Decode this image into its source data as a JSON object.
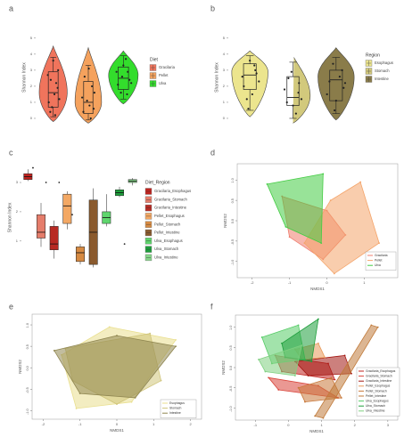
{
  "chart_data": [
    {
      "panel": "a",
      "type": "violin",
      "ylabel": "Shannon Index",
      "yticks": [
        0,
        1,
        2,
        3,
        4,
        5
      ],
      "ylim": [
        -0.5,
        5.6
      ],
      "legend": {
        "title": "Diet",
        "entries": [
          "Gracilaria",
          "Pellet",
          "Ulva"
        ]
      },
      "groups": [
        {
          "name": "Gracilaria",
          "color": "#f0745c",
          "min": -0.2,
          "max": 4.5,
          "mode": 1.6,
          "width": 0.95,
          "q1": 0.7,
          "median": 1.6,
          "q3": 2.9,
          "wlo": 0.1,
          "whi": 3.8,
          "points": [
            [
              -0.18,
              1.0
            ],
            [
              0.12,
              2.2
            ],
            [
              0.2,
              3.0
            ],
            [
              -0.12,
              0.4
            ],
            [
              0.05,
              1.5
            ],
            [
              -0.22,
              2.7
            ],
            [
              0.25,
              1.2
            ],
            [
              0.0,
              3.6
            ],
            [
              -0.05,
              0.7
            ],
            [
              0.18,
              1.9
            ],
            [
              -0.1,
              2.4
            ],
            [
              0.08,
              0.2
            ]
          ]
        },
        {
          "name": "Pellet",
          "color": "#f5a25d",
          "min": -0.3,
          "max": 4.4,
          "mode": 1.0,
          "width": 0.9,
          "q1": 0.3,
          "median": 1.0,
          "q3": 2.3,
          "wlo": -0.1,
          "whi": 3.3,
          "points": [
            [
              -0.2,
              0.4
            ],
            [
              0.15,
              2.0
            ],
            [
              -0.05,
              1.1
            ],
            [
              0.22,
              0.6
            ],
            [
              0.02,
              3.1
            ],
            [
              -0.15,
              2.6
            ],
            [
              0.1,
              0.0
            ],
            [
              0.25,
              1.6
            ],
            [
              -0.25,
              1.3
            ],
            [
              0.05,
              0.8
            ]
          ]
        },
        {
          "name": "Ulva",
          "color": "#33dd2c",
          "min": 0.9,
          "max": 4.2,
          "mode": 2.7,
          "width": 1.0,
          "q1": 1.8,
          "median": 2.5,
          "q3": 3.2,
          "wlo": 1.2,
          "whi": 3.9,
          "points": [
            [
              -0.22,
              2.1
            ],
            [
              0.18,
              2.9
            ],
            [
              0.0,
              3.3
            ],
            [
              -0.1,
              1.6
            ],
            [
              0.25,
              2.4
            ],
            [
              0.1,
              3.7
            ],
            [
              -0.28,
              2.9
            ],
            [
              0.32,
              2.2
            ],
            [
              -0.05,
              2.6
            ],
            [
              0.15,
              1.5
            ]
          ]
        }
      ]
    },
    {
      "panel": "b",
      "type": "violin",
      "ylabel": "Shannon Index",
      "yticks": [
        0,
        1,
        2,
        3,
        4,
        5
      ],
      "ylim": [
        -0.5,
        5.6
      ],
      "legend": {
        "title": "Region",
        "entries": [
          "Esophagus",
          "Stomach",
          "Intestine"
        ]
      },
      "groups": [
        {
          "name": "Esophagus",
          "color": "#ece58e",
          "min": 0.1,
          "max": 4.2,
          "mode": 2.9,
          "width": 1.0,
          "q1": 1.8,
          "median": 2.7,
          "q3": 3.4,
          "wlo": 0.5,
          "whi": 3.9,
          "points": [
            [
              -0.2,
              2.0
            ],
            [
              0.15,
              3.3
            ],
            [
              -0.1,
              1.2
            ],
            [
              0.22,
              2.8
            ],
            [
              0.0,
              3.6
            ],
            [
              -0.25,
              2.6
            ],
            [
              0.08,
              1.5
            ],
            [
              0.3,
              2.3
            ],
            [
              -0.05,
              0.6
            ],
            [
              0.18,
              3.0
            ]
          ]
        },
        {
          "name": "Stomach",
          "color": "#d2c97c",
          "min": -0.3,
          "max": 3.9,
          "mode": 1.4,
          "width": 0.95,
          "q1": 0.8,
          "median": 1.3,
          "q3": 2.6,
          "wlo": 0.0,
          "whi": 3.5,
          "points": [
            [
              -0.2,
              1.0
            ],
            [
              0.2,
              2.2
            ],
            [
              -0.05,
              2.9
            ],
            [
              0.1,
              0.3
            ],
            [
              -0.28,
              1.8
            ],
            [
              0.28,
              1.2
            ],
            [
              0.0,
              0.8
            ],
            [
              -0.15,
              2.5
            ],
            [
              0.18,
              1.6
            ]
          ]
        },
        {
          "name": "Intestine",
          "color": "#8a7c4a",
          "min": -0.1,
          "max": 4.4,
          "mode": 2.6,
          "width": 1.0,
          "q1": 1.1,
          "median": 2.4,
          "q3": 3.0,
          "wlo": 0.3,
          "whi": 3.8,
          "points": [
            [
              -0.22,
              2.3
            ],
            [
              0.2,
              3.0
            ],
            [
              0.0,
              1.1
            ],
            [
              -0.1,
              3.4
            ],
            [
              0.25,
              1.9
            ],
            [
              -0.3,
              1.5
            ],
            [
              0.12,
              2.6
            ],
            [
              -0.05,
              0.5
            ],
            [
              0.3,
              2.2
            ]
          ]
        }
      ]
    },
    {
      "panel": "c",
      "type": "box",
      "ylabel": "Shannon Index",
      "yticks": [
        1,
        2,
        3
      ],
      "ylim": [
        -0.1,
        3.7
      ],
      "legend": {
        "title": "Diet_Region",
        "entries": [
          "Gracilaria_Esophagus",
          "Gracilaria_Stomach",
          "Gracilaria_Intestine",
          "Pellet_Esophagus",
          "Pellet_Stomach",
          "Pellet_Intestine",
          "Ulva_Esophagus",
          "Ulva_Stomach",
          "Ulva_Intestine"
        ]
      },
      "boxes": [
        {
          "name": "Gracilaria_Esophagus",
          "color": "#c0231f",
          "min": 3.05,
          "q1": 3.1,
          "median": 3.2,
          "q3": 3.3,
          "max": 3.45,
          "outliers": [
            3.5
          ]
        },
        {
          "name": "Gracilaria_Stomach",
          "color": "#e57d6b",
          "min": 0.8,
          "q1": 1.1,
          "median": 1.3,
          "q3": 1.9,
          "max": 2.3,
          "outliers": [
            3.0
          ]
        },
        {
          "name": "Gracilaria_Intestine",
          "color": "#b82a23",
          "min": 0.4,
          "q1": 0.7,
          "median": 0.9,
          "q3": 1.5,
          "max": 1.7,
          "outliers": [
            3.0
          ]
        },
        {
          "name": "Pellet_Esophagus",
          "color": "#f3a864",
          "min": 1.4,
          "q1": 1.6,
          "median": 2.2,
          "q3": 2.6,
          "max": 2.7,
          "outliers": [
            1.9
          ]
        },
        {
          "name": "Pellet_Stomach",
          "color": "#d68a42",
          "min": 0.2,
          "q1": 0.3,
          "median": 0.6,
          "q3": 0.8,
          "max": 0.9,
          "outliers": []
        },
        {
          "name": "Pellet_Intestine",
          "color": "#8a5a2e",
          "min": 0.1,
          "q1": 0.2,
          "median": 1.3,
          "q3": 2.4,
          "max": 2.8,
          "outliers": []
        },
        {
          "name": "Ulva_Esophagus",
          "color": "#5fd56d",
          "min": 1.5,
          "q1": 1.6,
          "median": 1.8,
          "q3": 2.0,
          "max": 2.6,
          "outliers": []
        },
        {
          "name": "Ulva_Stomach",
          "color": "#1e9e3c",
          "min": 2.5,
          "q1": 2.55,
          "median": 2.65,
          "q3": 2.75,
          "max": 2.85,
          "outliers": [
            0.9
          ]
        },
        {
          "name": "Ulva_Intestine",
          "color": "#86d68a",
          "min": 2.9,
          "q1": 3.0,
          "median": 3.05,
          "q3": 3.1,
          "max": 3.15,
          "outliers": []
        }
      ]
    },
    {
      "panel": "d",
      "type": "ordination",
      "xlabel": "NMDS1",
      "ylabel": "NMDS2",
      "xticks": [
        -2,
        -1,
        0,
        1
      ],
      "yticks": [
        -1.0,
        -0.5,
        0.0,
        0.5,
        1.0
      ],
      "xlim": [
        -2.4,
        1.9
      ],
      "ylim": [
        -1.4,
        1.4
      ],
      "legend": {
        "entries": [
          "Gracilaria",
          "Pellet",
          "Ulva"
        ],
        "position": "bottom-right"
      },
      "groups": [
        {
          "name": "Gracilaria",
          "color": "#ef7c6c",
          "hull": [
            [
              -1.2,
              0.6
            ],
            [
              0.0,
              0.25
            ],
            [
              0.5,
              -0.35
            ],
            [
              -0.1,
              -0.95
            ],
            [
              -1.0,
              -0.4
            ]
          ]
        },
        {
          "name": "Pellet",
          "color": "#f4a46a",
          "hull": [
            [
              0.1,
              0.5
            ],
            [
              0.9,
              0.95
            ],
            [
              1.4,
              -0.55
            ],
            [
              0.2,
              -1.3
            ],
            [
              -0.6,
              -0.55
            ]
          ]
        },
        {
          "name": "Ulva",
          "color": "#44cc44",
          "hull": [
            [
              -1.6,
              0.9
            ],
            [
              -0.1,
              1.15
            ],
            [
              -0.15,
              -0.55
            ],
            [
              -1.1,
              -0.15
            ]
          ]
        }
      ]
    },
    {
      "panel": "e",
      "type": "ordination",
      "xlabel": "NMDS1",
      "ylabel": "NMDS2",
      "xticks": [
        -2,
        -1,
        0,
        1,
        2
      ],
      "yticks": [
        -1.0,
        -0.5,
        0.0,
        0.5,
        1.0
      ],
      "xlim": [
        -2.3,
        2.3
      ],
      "ylim": [
        -1.2,
        1.25
      ],
      "legend": {
        "entries": [
          "Esophagus",
          "Stomach",
          "Intestine"
        ],
        "position": "bottom-right"
      },
      "groups": [
        {
          "name": "Esophagus",
          "color": "#e9df8e",
          "hull": [
            [
              -1.5,
              0.3
            ],
            [
              -0.2,
              0.95
            ],
            [
              1.6,
              0.65
            ],
            [
              0.4,
              -0.8
            ],
            [
              -1.1,
              -0.95
            ]
          ]
        },
        {
          "name": "Stomach",
          "color": "#cfc47a",
          "hull": [
            [
              -1.4,
              0.45
            ],
            [
              0.9,
              0.8
            ],
            [
              1.2,
              -0.3
            ],
            [
              0.0,
              -0.85
            ],
            [
              -1.2,
              -0.3
            ]
          ]
        },
        {
          "name": "Intestine",
          "color": "#8f8650",
          "hull": [
            [
              -1.7,
              0.4
            ],
            [
              0.0,
              0.75
            ],
            [
              1.6,
              0.5
            ],
            [
              0.5,
              -0.7
            ],
            [
              -1.0,
              -0.6
            ]
          ]
        }
      ]
    },
    {
      "panel": "f",
      "type": "ordination",
      "xlabel": "NMDS1",
      "ylabel": "NMDS2",
      "xticks": [
        -1,
        0,
        1,
        2,
        3
      ],
      "yticks": [
        -1.0,
        -0.5,
        0.0,
        0.5,
        1.0
      ],
      "xlim": [
        -1.6,
        3.3
      ],
      "ylim": [
        -1.3,
        1.3
      ],
      "legend": {
        "entries": [
          "Gracilaria_Esophagus",
          "Gracilaria_Stomach",
          "Gracilaria_Intestine",
          "Pellet_Esophagus",
          "Pellet_Stomach",
          "Pellet_Intestine",
          "Ulva_Esophagus",
          "Ulva_Stomach",
          "Ulva_Intestine"
        ],
        "position": "right"
      },
      "groups": [
        {
          "name": "Gracilaria_Esophagus",
          "color": "#c0231f",
          "hull": [
            [
              -0.4,
              0.3
            ],
            [
              1.2,
              0.1
            ],
            [
              1.4,
              -0.3
            ],
            [
              -0.2,
              -0.1
            ]
          ]
        },
        {
          "name": "Gracilaria_Stomach",
          "color": "#d9443a",
          "hull": [
            [
              -0.6,
              -0.25
            ],
            [
              0.9,
              -0.45
            ],
            [
              1.5,
              -0.75
            ],
            [
              -0.3,
              -0.55
            ]
          ]
        },
        {
          "name": "Gracilaria_Intestine",
          "color": "#a31712",
          "hull": [
            [
              0.2,
              0.15
            ],
            [
              1.7,
              0.3
            ],
            [
              1.9,
              -0.15
            ],
            [
              0.6,
              -0.2
            ]
          ]
        },
        {
          "name": "Pellet_Esophagus",
          "color": "#e89858",
          "hull": [
            [
              0.2,
              0.45
            ],
            [
              0.9,
              0.6
            ],
            [
              1.1,
              0.25
            ],
            [
              0.4,
              0.2
            ]
          ]
        },
        {
          "name": "Pellet_Stomach",
          "color": "#c8783a",
          "hull": [
            [
              0.3,
              -0.5
            ],
            [
              1.3,
              -0.25
            ],
            [
              1.6,
              -0.75
            ],
            [
              0.5,
              -0.85
            ]
          ]
        },
        {
          "name": "Pellet_Intestine",
          "color": "#c07a3a",
          "hull": [
            [
              0.8,
              -1.2
            ],
            [
              1.05,
              -1.25
            ],
            [
              2.7,
              1.0
            ],
            [
              2.5,
              1.05
            ]
          ]
        },
        {
          "name": "Ulva_Esophagus",
          "color": "#55cc66",
          "hull": [
            [
              -0.8,
              0.75
            ],
            [
              0.3,
              1.05
            ],
            [
              0.5,
              0.2
            ],
            [
              -0.5,
              0.1
            ]
          ]
        },
        {
          "name": "Ulva_Stomach",
          "color": "#1e9e3c",
          "hull": [
            [
              -0.2,
              0.6
            ],
            [
              0.9,
              1.2
            ],
            [
              0.7,
              0.15
            ],
            [
              -0.1,
              0.25
            ]
          ]
        },
        {
          "name": "Ulva_Intestine",
          "color": "#7fd080",
          "hull": [
            [
              -0.9,
              0.2
            ],
            [
              0.4,
              0.55
            ],
            [
              0.2,
              -0.2
            ],
            [
              -0.7,
              -0.1
            ]
          ]
        }
      ]
    }
  ],
  "labels": [
    "a",
    "b",
    "c",
    "d",
    "e",
    "f"
  ]
}
